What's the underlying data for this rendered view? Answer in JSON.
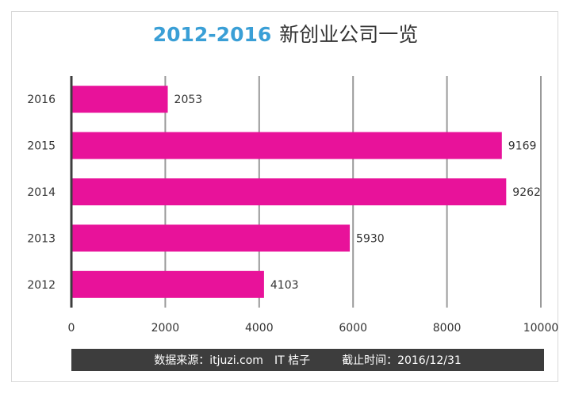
{
  "chart_data": {
    "type": "bar",
    "orientation": "horizontal",
    "title_years": "2012-2016",
    "title_text": "新创业公司一览",
    "categories": [
      "2016",
      "2015",
      "2014",
      "2013",
      "2012"
    ],
    "values": [
      2053,
      9169,
      9262,
      5930,
      4103
    ],
    "xlim": [
      0,
      10000
    ],
    "xticks": [
      "0",
      "2000",
      "4000",
      "6000",
      "8000",
      "10000"
    ],
    "xtick_values": [
      0,
      2000,
      4000,
      6000,
      8000,
      10000
    ],
    "grid": true,
    "bar_color": "#e8129a",
    "grid_color": "#9a9a9a"
  },
  "footer": {
    "source_label": "数据来源：itjuzi.com",
    "brand": "IT 桔子",
    "cutoff": "截止时间：2016/12/31"
  }
}
